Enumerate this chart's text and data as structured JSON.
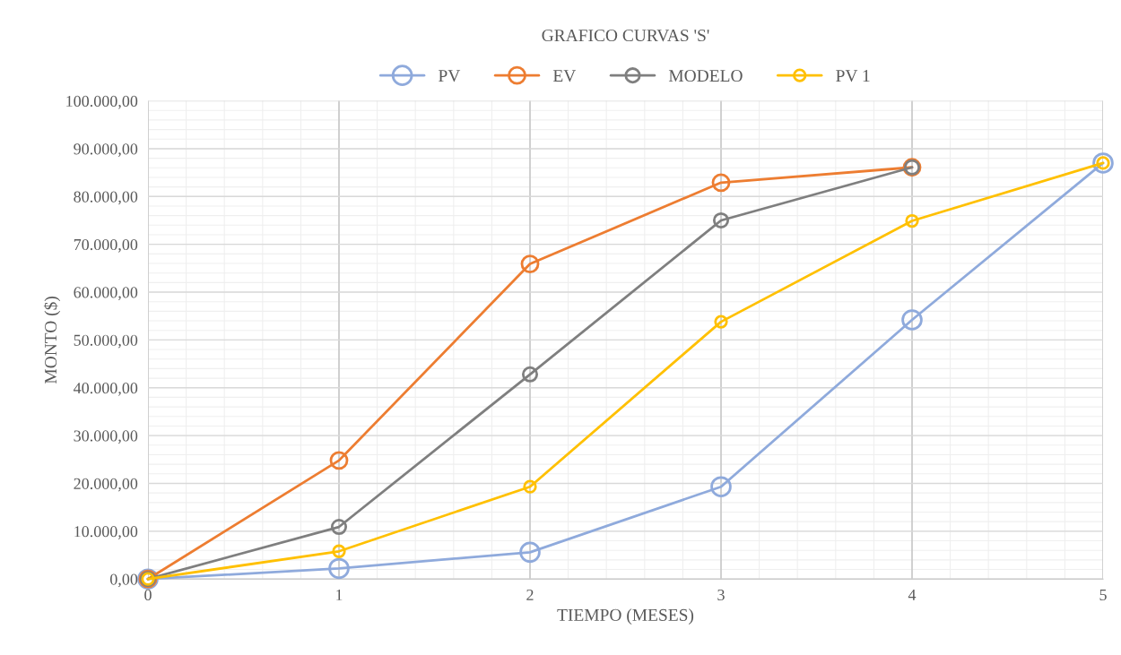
{
  "chart_data": {
    "type": "line",
    "title": "GRAFICO CURVAS 'S'",
    "xlabel": "TIEMPO (MESES)",
    "ylabel": "MONTO ($)",
    "x": [
      0,
      1,
      2,
      3,
      4,
      5
    ],
    "series": [
      {
        "name": "PV",
        "color": "#8faadc",
        "values": [
          0,
          2200,
          5600,
          19300,
          54200,
          87000
        ]
      },
      {
        "name": "EV",
        "color": "#ed7d31",
        "values": [
          0,
          24800,
          65900,
          82900,
          86100,
          null
        ]
      },
      {
        "name": "MODELO",
        "color": "#7f7f7f",
        "values": [
          0,
          10900,
          42800,
          75000,
          86100,
          null
        ]
      },
      {
        "name": "PV 1",
        "color": "#ffc000",
        "values": [
          0,
          5800,
          19300,
          53800,
          74900,
          87000
        ]
      }
    ],
    "xlim": [
      0,
      5
    ],
    "xticks": [
      0,
      1,
      2,
      3,
      4,
      5
    ],
    "ylim": [
      0,
      100000
    ],
    "yticks": [
      {
        "value": 0,
        "label": "0,00"
      },
      {
        "value": 10000,
        "label": "10.000,00"
      },
      {
        "value": 20000,
        "label": "20.000,00"
      },
      {
        "value": 30000,
        "label": "30.000,00"
      },
      {
        "value": 40000,
        "label": "40.000,00"
      },
      {
        "value": 50000,
        "label": "50.000,00"
      },
      {
        "value": 60000,
        "label": "60.000,00"
      },
      {
        "value": 70000,
        "label": "70.000,00"
      },
      {
        "value": 80000,
        "label": "80.000,00"
      },
      {
        "value": 90000,
        "label": "90.000,00"
      },
      {
        "value": 100000,
        "label": "100.000,00"
      }
    ],
    "grid": true,
    "legend": "top",
    "marker": "circle",
    "line_style": "solid"
  }
}
